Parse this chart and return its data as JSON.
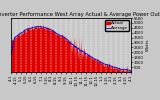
{
  "title": "Solar PV/Inverter Performance West Array Actual & Average Power Output",
  "title_fontsize": 3.8,
  "background_color": "#c8c8c8",
  "plot_bg_color": "#c8c8c8",
  "ylabel_right": "Watts",
  "ylabel_right_fontsize": 3.2,
  "ylim": [
    0,
    5500
  ],
  "yticks": [
    500,
    1000,
    1500,
    2000,
    2500,
    3000,
    3500,
    4000,
    4500,
    5000,
    5500
  ],
  "grid_color": "#ffffff",
  "grid_style": "--",
  "area_color": "#dd0000",
  "avg_line_color": "#0000ee",
  "legend_actual": "Actual",
  "legend_average": "Average",
  "legend_fontsize": 3.0,
  "tick_fontsize": 2.8,
  "x_labels": [
    "4-1",
    "4-15",
    "5-1",
    "5-15",
    "6-1",
    "6-15",
    "7-1",
    "7-15",
    "8-1",
    "8-15",
    "9-1",
    "9-15",
    "10-1",
    "10-15",
    "11-1",
    "11-15",
    "12-1",
    "12-15",
    "1-1",
    "1-15",
    "2-1",
    "2-15",
    "3-1",
    "3-15",
    "4-1"
  ]
}
